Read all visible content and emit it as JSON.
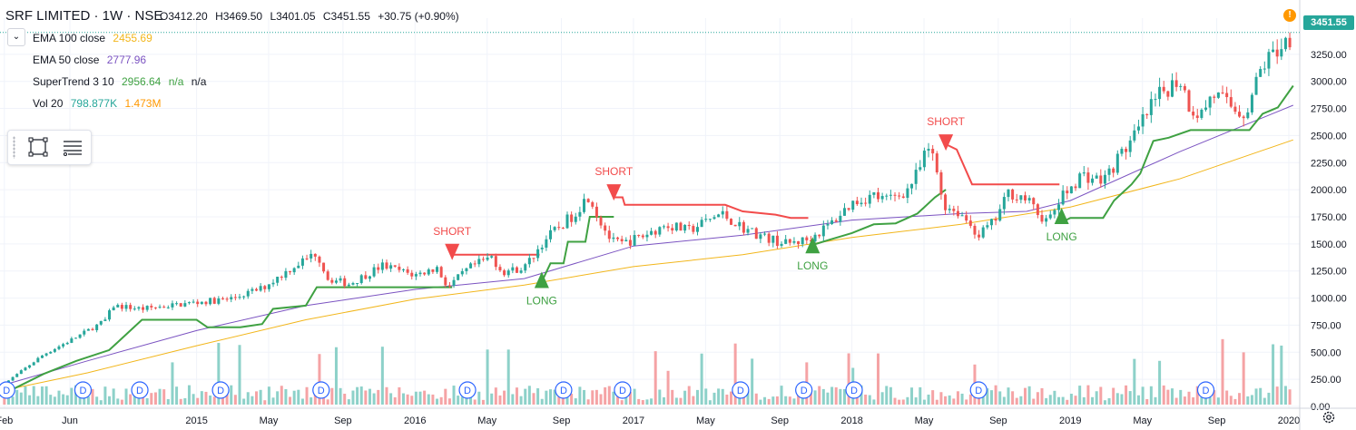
{
  "header": {
    "symbol": "SRF LIMITED · 1W · NSE",
    "open": "O3412.20",
    "high": "H3469.50",
    "low": "L3401.05",
    "close": "C3451.55",
    "change": "+30.75 (+0.90%)"
  },
  "indicators": [
    {
      "label": "EMA 100 close",
      "value": "2455.69",
      "color": "#f2b61b"
    },
    {
      "label": "EMA 50 close",
      "value": "2777.96",
      "color": "#7b53c1"
    },
    {
      "label": "SuperTrend 3 10",
      "value": "2956.64",
      "value2": "n/a",
      "value3": "n/a",
      "color": "#3fa142"
    },
    {
      "label": "Vol 20",
      "value": "798.877K",
      "value2": "1.473M",
      "color": "#26a69a",
      "color2": "#ff9800"
    }
  ],
  "collapse_icon": "chevron-down-icon",
  "toolbox_icons": [
    "grip-icon",
    "rectangle-icon",
    "list-icon"
  ],
  "current_price_label": "3451.55",
  "alert_label": "!",
  "colors": {
    "up": "#26a69a",
    "down": "#ef5350",
    "vol_up": "#8dd1c9",
    "vol_down": "#f5a3a5",
    "supertrend_up": "#3fa142",
    "supertrend_down": "#f24b4b",
    "ema100": "#f2b61b",
    "ema50": "#7b53c1",
    "grid": "#f0f3fa"
  },
  "chart_data": {
    "type": "candlestick",
    "price_axis": {
      "range": [
        0,
        3550
      ],
      "ticks": [
        {
          "v": 3250,
          "l": "3250.00"
        },
        {
          "v": 3000,
          "l": "3000.00"
        },
        {
          "v": 2750,
          "l": "2750.00"
        },
        {
          "v": 2500,
          "l": "2500.00"
        },
        {
          "v": 2250,
          "l": "2250.00"
        },
        {
          "v": 2000,
          "l": "2000.00"
        },
        {
          "v": 1750,
          "l": "1750.00"
        },
        {
          "v": 1500,
          "l": "1500.00"
        },
        {
          "v": 1250,
          "l": "1250.00"
        },
        {
          "v": 1000,
          "l": "1000.00"
        },
        {
          "v": 750,
          "l": "750.00"
        },
        {
          "v": 500,
          "l": "500.00"
        },
        {
          "v": 250,
          "l": "250.00"
        },
        {
          "v": 0,
          "l": "0.00"
        }
      ]
    },
    "time_axis": {
      "range": [
        2014.1,
        2020.05
      ],
      "ticks": [
        {
          "t": 2014.12,
          "l": "Feb"
        },
        {
          "t": 2014.42,
          "l": "Jun"
        },
        {
          "t": 2015.0,
          "l": "2015"
        },
        {
          "t": 2015.33,
          "l": "May"
        },
        {
          "t": 2015.67,
          "l": "Sep"
        },
        {
          "t": 2016.0,
          "l": "2016"
        },
        {
          "t": 2016.33,
          "l": "May"
        },
        {
          "t": 2016.67,
          "l": "Sep"
        },
        {
          "t": 2017.0,
          "l": "2017"
        },
        {
          "t": 2017.33,
          "l": "May"
        },
        {
          "t": 2017.67,
          "l": "Sep"
        },
        {
          "t": 2018.0,
          "l": "2018"
        },
        {
          "t": 2018.33,
          "l": "May"
        },
        {
          "t": 2018.67,
          "l": "Sep"
        },
        {
          "t": 2019.0,
          "l": "2019"
        },
        {
          "t": 2019.33,
          "l": "May"
        },
        {
          "t": 2019.67,
          "l": "Sep"
        },
        {
          "t": 2020.0,
          "l": "2020"
        }
      ]
    },
    "close_path": [
      [
        2014.12,
        210
      ],
      [
        2014.3,
        480
      ],
      [
        2014.45,
        640
      ],
      [
        2014.58,
        790
      ],
      [
        2014.62,
        930
      ],
      [
        2014.75,
        900
      ],
      [
        2015.0,
        960
      ],
      [
        2015.15,
        990
      ],
      [
        2015.3,
        1090
      ],
      [
        2015.45,
        1300
      ],
      [
        2015.55,
        1420
      ],
      [
        2015.6,
        1180
      ],
      [
        2015.7,
        1130
      ],
      [
        2015.85,
        1300
      ],
      [
        2016.0,
        1210
      ],
      [
        2016.1,
        1280
      ],
      [
        2016.15,
        1100
      ],
      [
        2016.25,
        1280
      ],
      [
        2016.35,
        1380
      ],
      [
        2016.4,
        1240
      ],
      [
        2016.5,
        1280
      ],
      [
        2016.6,
        1550
      ],
      [
        2016.72,
        1760
      ],
      [
        2016.8,
        1960
      ],
      [
        2016.83,
        1780
      ],
      [
        2016.9,
        1520
      ],
      [
        2016.95,
        1500
      ],
      [
        2017.05,
        1580
      ],
      [
        2017.15,
        1680
      ],
      [
        2017.25,
        1620
      ],
      [
        2017.4,
        1780
      ],
      [
        2017.5,
        1650
      ],
      [
        2017.6,
        1560
      ],
      [
        2017.7,
        1500
      ],
      [
        2017.8,
        1540
      ],
      [
        2017.9,
        1680
      ],
      [
        2018.0,
        1880
      ],
      [
        2018.1,
        1950
      ],
      [
        2018.15,
        1900
      ],
      [
        2018.25,
        1990
      ],
      [
        2018.3,
        2150
      ],
      [
        2018.35,
        2380
      ],
      [
        2018.38,
        2250
      ],
      [
        2018.42,
        1860
      ],
      [
        2018.5,
        1780
      ],
      [
        2018.58,
        1580
      ],
      [
        2018.65,
        1700
      ],
      [
        2018.72,
        1980
      ],
      [
        2018.8,
        1910
      ],
      [
        2018.85,
        1780
      ],
      [
        2018.9,
        1700
      ],
      [
        2018.95,
        1900
      ],
      [
        2019.05,
        2140
      ],
      [
        2019.15,
        2080
      ],
      [
        2019.25,
        2380
      ],
      [
        2019.3,
        2500
      ],
      [
        2019.35,
        2700
      ],
      [
        2019.42,
        2900
      ],
      [
        2019.5,
        3030
      ],
      [
        2019.55,
        2750
      ],
      [
        2019.6,
        2700
      ],
      [
        2019.65,
        2890
      ],
      [
        2019.75,
        2750
      ],
      [
        2019.8,
        2700
      ],
      [
        2019.88,
        3150
      ],
      [
        2019.95,
        3300
      ],
      [
        2020.02,
        3450
      ]
    ],
    "volume_axis": {
      "range": [
        0,
        620
      ],
      "ticks": [
        {
          "v": 500,
          "l": "500.00"
        },
        {
          "v": 250,
          "l": "250.00"
        },
        {
          "v": 0,
          "l": "0.00"
        }
      ]
    },
    "dividend_markers": [
      2014.13,
      2014.48,
      2014.74,
      2015.11,
      2015.57,
      2016.24,
      2016.68,
      2016.95,
      2017.49,
      2017.78,
      2018.01,
      2018.58,
      2019.62
    ],
    "dividend_label": "D",
    "signals": [
      {
        "type": "SHORT",
        "t": 2016.17,
        "price": 1400,
        "label": "SHORT"
      },
      {
        "type": "LONG",
        "t": 2016.58,
        "price": 1160,
        "label": "LONG"
      },
      {
        "type": "SHORT",
        "t": 2016.91,
        "price": 1950,
        "label": "SHORT"
      },
      {
        "type": "LONG",
        "t": 2017.82,
        "price": 1480,
        "label": "LONG"
      },
      {
        "type": "SHORT",
        "t": 2018.43,
        "price": 2410,
        "label": "SHORT"
      },
      {
        "type": "LONG",
        "t": 2018.96,
        "price": 1750,
        "label": "LONG"
      }
    ],
    "ema100_path": [
      [
        2014.12,
        150
      ],
      [
        2014.5,
        310
      ],
      [
        2015.0,
        560
      ],
      [
        2015.5,
        800
      ],
      [
        2016.0,
        990
      ],
      [
        2016.5,
        1120
      ],
      [
        2017.0,
        1290
      ],
      [
        2017.5,
        1400
      ],
      [
        2018.0,
        1560
      ],
      [
        2018.5,
        1680
      ],
      [
        2019.0,
        1840
      ],
      [
        2019.5,
        2100
      ],
      [
        2020.02,
        2460
      ]
    ],
    "ema50_path": [
      [
        2014.12,
        200
      ],
      [
        2014.5,
        420
      ],
      [
        2015.0,
        700
      ],
      [
        2015.5,
        930
      ],
      [
        2016.0,
        1080
      ],
      [
        2016.5,
        1180
      ],
      [
        2017.0,
        1480
      ],
      [
        2017.5,
        1580
      ],
      [
        2018.0,
        1720
      ],
      [
        2018.5,
        1780
      ],
      [
        2018.8,
        1800
      ],
      [
        2019.0,
        1900
      ],
      [
        2019.5,
        2350
      ],
      [
        2020.02,
        2780
      ]
    ],
    "supertrend_segments": [
      {
        "trend": "up",
        "points": [
          [
            2014.12,
            120
          ],
          [
            2014.3,
            300
          ],
          [
            2014.45,
            420
          ],
          [
            2014.6,
            520
          ],
          [
            2014.75,
            800
          ],
          [
            2015.0,
            800
          ],
          [
            2015.05,
            730
          ],
          [
            2015.2,
            730
          ],
          [
            2015.3,
            760
          ],
          [
            2015.35,
            900
          ],
          [
            2015.5,
            930
          ],
          [
            2015.55,
            1100
          ],
          [
            2015.75,
            1100
          ],
          [
            2016.17,
            1100
          ]
        ]
      },
      {
        "trend": "down",
        "points": [
          [
            2016.17,
            1400
          ],
          [
            2016.57,
            1400
          ]
        ]
      },
      {
        "trend": "up",
        "points": [
          [
            2016.58,
            1150
          ],
          [
            2016.62,
            1320
          ],
          [
            2016.68,
            1320
          ],
          [
            2016.7,
            1520
          ],
          [
            2016.78,
            1520
          ],
          [
            2016.8,
            1750
          ],
          [
            2016.91,
            1750
          ]
        ]
      },
      {
        "trend": "down",
        "points": [
          [
            2016.91,
            1930
          ],
          [
            2016.95,
            1930
          ],
          [
            2016.96,
            1860
          ],
          [
            2017.42,
            1860
          ],
          [
            2017.5,
            1800
          ],
          [
            2017.65,
            1770
          ],
          [
            2017.72,
            1740
          ],
          [
            2017.8,
            1740
          ]
        ]
      },
      {
        "trend": "up",
        "points": [
          [
            2017.82,
            1490
          ],
          [
            2017.9,
            1540
          ],
          [
            2018.0,
            1600
          ],
          [
            2018.1,
            1680
          ],
          [
            2018.2,
            1690
          ],
          [
            2018.3,
            1780
          ],
          [
            2018.38,
            1930
          ],
          [
            2018.43,
            2000
          ]
        ]
      },
      {
        "trend": "down",
        "points": [
          [
            2018.43,
            2420
          ],
          [
            2018.48,
            2370
          ],
          [
            2018.55,
            2050
          ],
          [
            2018.95,
            2050
          ]
        ]
      },
      {
        "trend": "up",
        "points": [
          [
            2018.96,
            1700
          ],
          [
            2019.0,
            1740
          ],
          [
            2019.15,
            1740
          ],
          [
            2019.2,
            1900
          ],
          [
            2019.28,
            2050
          ],
          [
            2019.32,
            2150
          ],
          [
            2019.38,
            2450
          ],
          [
            2019.45,
            2480
          ],
          [
            2019.55,
            2550
          ],
          [
            2019.82,
            2550
          ],
          [
            2019.88,
            2700
          ],
          [
            2019.95,
            2760
          ],
          [
            2020.02,
            2960
          ]
        ]
      }
    ]
  }
}
